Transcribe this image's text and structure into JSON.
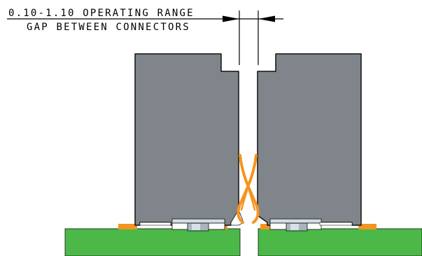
{
  "annotation": {
    "line1": "0.10-1.10 OPERATING RANGE",
    "line2": "GAP BETWEEN CONNECTORS"
  },
  "colors": {
    "connector_body": "#7f858a",
    "connector_outline": "#111111",
    "pcb": "#4cb848",
    "contact_spring": "#f5941e",
    "solder_pad": "#f5941e",
    "post_light": "#d3dde3",
    "post_mid": "#a9b4bb",
    "post_dark": "#6f7a80",
    "background": "#ffffff",
    "dimension_line": "#000000"
  }
}
